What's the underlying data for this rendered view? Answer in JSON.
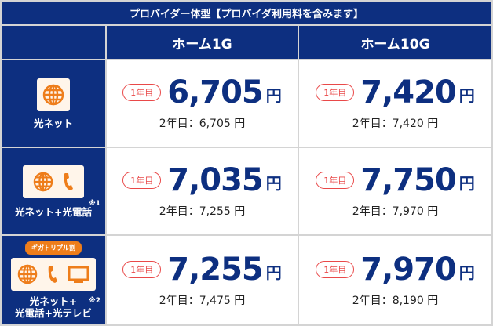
{
  "title": "プロバイダー体型【プロバイダ利用料を含みます】",
  "columns": [
    "ホーム1G",
    "ホーム10G"
  ],
  "colors": {
    "navy": "#0d2f80",
    "orange": "#ee7d1a",
    "red": "#e94949"
  },
  "first_year_label": "1年目",
  "yen": "円",
  "rows": [
    {
      "label": "光ネット",
      "icons": [
        "globe-icon"
      ],
      "prices": [
        {
          "first": "6,705",
          "second": "2年目：6,705 円"
        },
        {
          "first": "7,420",
          "second": "2年目：7,420 円"
        }
      ]
    },
    {
      "label": "光ネット+光電話",
      "note": "※1",
      "icons": [
        "globe-icon",
        "phone-icon"
      ],
      "prices": [
        {
          "first": "7,035",
          "second": "2年目：7,255 円"
        },
        {
          "first": "7,750",
          "second": "2年目：7,970 円"
        }
      ]
    },
    {
      "label1": "光ネット+",
      "label2": "光電話+光テレビ",
      "note": "※2",
      "badge": "ギガトリプル割",
      "icons": [
        "globe-icon",
        "phone-icon",
        "tv-icon"
      ],
      "prices": [
        {
          "first": "7,255",
          "second": "2年目：7,475 円"
        },
        {
          "first": "7,970",
          "second": "2年目：8,190 円"
        }
      ]
    }
  ]
}
